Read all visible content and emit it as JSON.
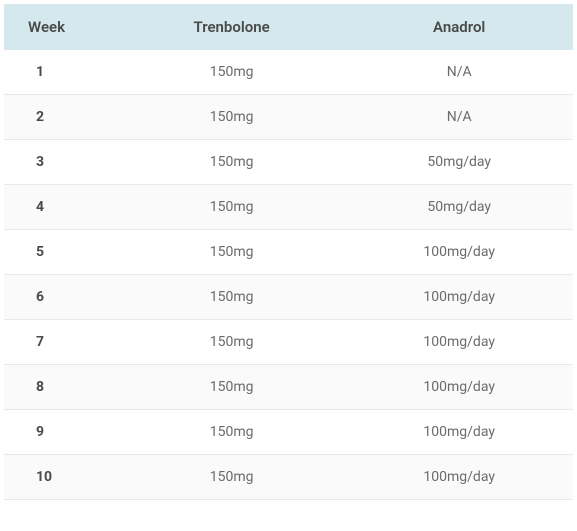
{
  "table": {
    "columns": [
      "Week",
      "Trenbolone",
      "Anadrol"
    ],
    "header_bg_color": "#d5e8ee",
    "header_text_color": "#4a4a4a",
    "header_fontsize": 15,
    "header_fontweight": 600,
    "row_even_bg": "#fafafa",
    "row_odd_bg": "#ffffff",
    "border_color": "#e8e8e8",
    "body_text_color": "#6b6b6b",
    "body_fontsize": 14,
    "week_col_fontweight": 700,
    "week_col_text_color": "#4a4a4a",
    "column_widths_pct": [
      20,
      40,
      40
    ],
    "rows": [
      [
        "1",
        "150mg",
        "N/A"
      ],
      [
        "2",
        "150mg",
        "N/A"
      ],
      [
        "3",
        "150mg",
        "50mg/day"
      ],
      [
        "4",
        "150mg",
        "50mg/day"
      ],
      [
        "5",
        "150mg",
        "100mg/day"
      ],
      [
        "6",
        "150mg",
        "100mg/day"
      ],
      [
        "7",
        "150mg",
        "100mg/day"
      ],
      [
        "8",
        "150mg",
        "100mg/day"
      ],
      [
        "9",
        "150mg",
        "100mg/day"
      ],
      [
        "10",
        "150mg",
        "100mg/day"
      ]
    ]
  }
}
